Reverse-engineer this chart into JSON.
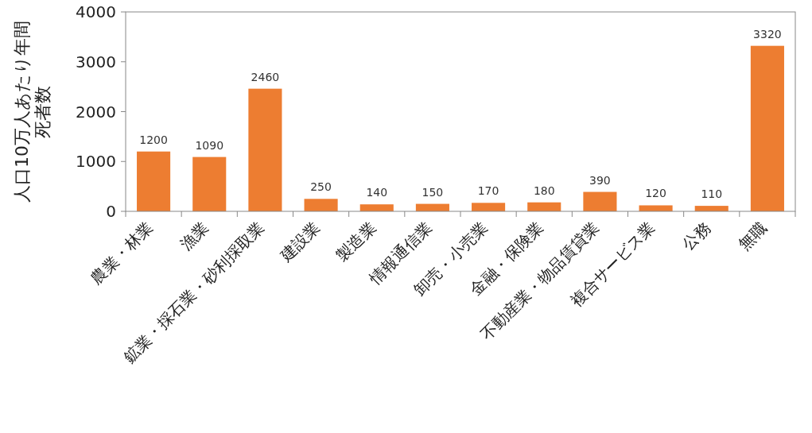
{
  "chart_data": {
    "type": "bar",
    "ylabel": "人口10万人あたり年間死者数",
    "categories": [
      "農業・林業",
      "漁業",
      "鉱業・採石業・砂利採取業",
      "建設業",
      "製造業",
      "情報通信業",
      "卸売・小売業",
      "金融・保険業",
      "不動産業・物品賃貸業",
      "複合サービス業",
      "公務",
      "無職"
    ],
    "values": [
      1200,
      1090,
      2460,
      250,
      140,
      150,
      170,
      180,
      390,
      120,
      110,
      3320
    ],
    "color": "#ed7d31",
    "ylim": [
      0,
      4000
    ],
    "yticks": [
      0,
      1000,
      2000,
      3000,
      4000
    ],
    "data_labels": true,
    "grid": false
  }
}
